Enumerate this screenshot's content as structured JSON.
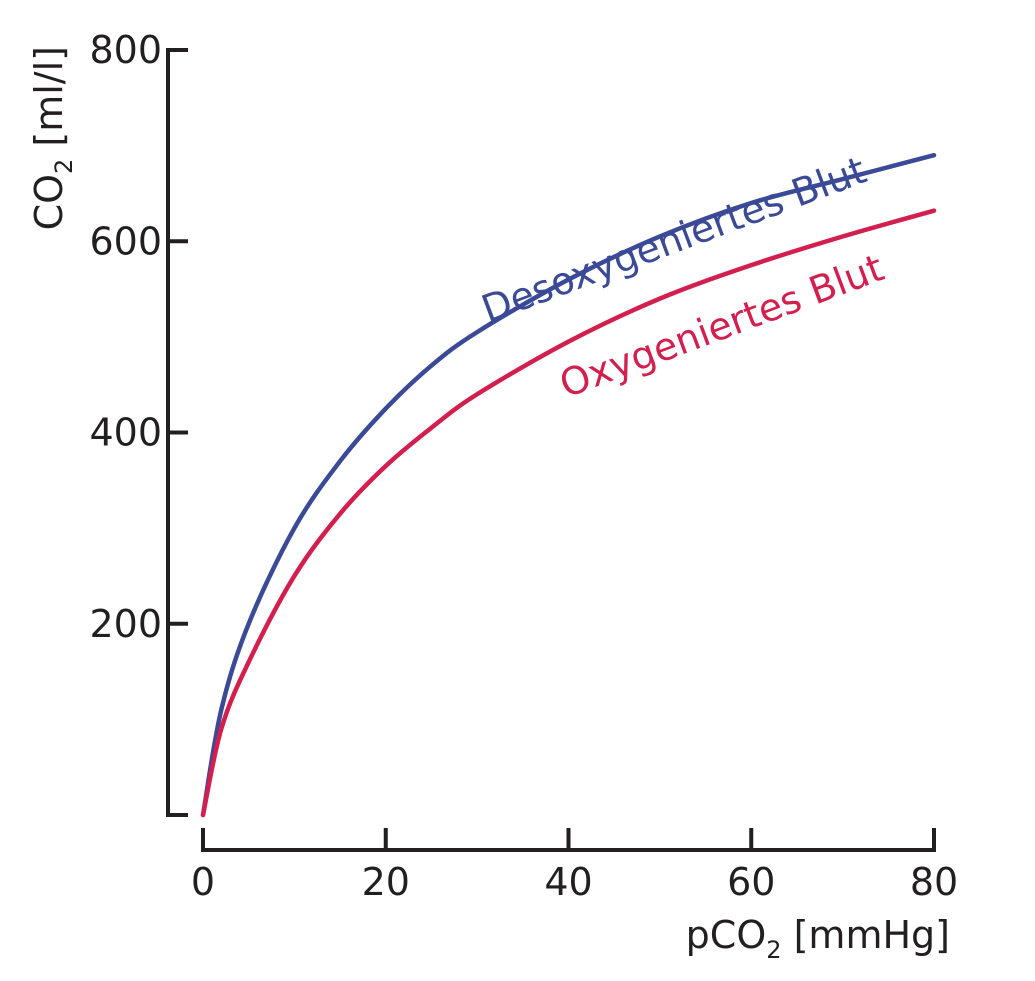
{
  "chart_data": {
    "type": "line",
    "xlabel": "pCO2 [mmHg]",
    "xlabel_main": "pCO",
    "xlabel_sub": "2",
    "xlabel_unit": " [mmHg]",
    "ylabel": "CO2 [ml/l]",
    "ylabel_main": "CO",
    "ylabel_sub": "2",
    "ylabel_unit": " [ml/l]",
    "xlim": [
      0,
      80
    ],
    "ylim": [
      0,
      800
    ],
    "x_ticks": [
      0,
      20,
      40,
      60,
      80
    ],
    "y_ticks": [
      200,
      400,
      600,
      800
    ],
    "grid": false,
    "series": [
      {
        "name": "Desoxygeniertes Blut",
        "color": "#3a4a96",
        "x": [
          0,
          2,
          5,
          10,
          15,
          20,
          25,
          30,
          40,
          50,
          60,
          70,
          80
        ],
        "y": [
          0,
          110,
          200,
          300,
          370,
          425,
          470,
          505,
          560,
          605,
          640,
          665,
          690
        ]
      },
      {
        "name": "Oxygeniertes Blut",
        "color": "#d21f4e",
        "x": [
          0,
          2,
          5,
          10,
          15,
          20,
          25,
          30,
          40,
          50,
          60,
          70,
          80
        ],
        "y": [
          0,
          90,
          160,
          250,
          315,
          365,
          405,
          440,
          495,
          540,
          575,
          605,
          632
        ]
      }
    ]
  }
}
